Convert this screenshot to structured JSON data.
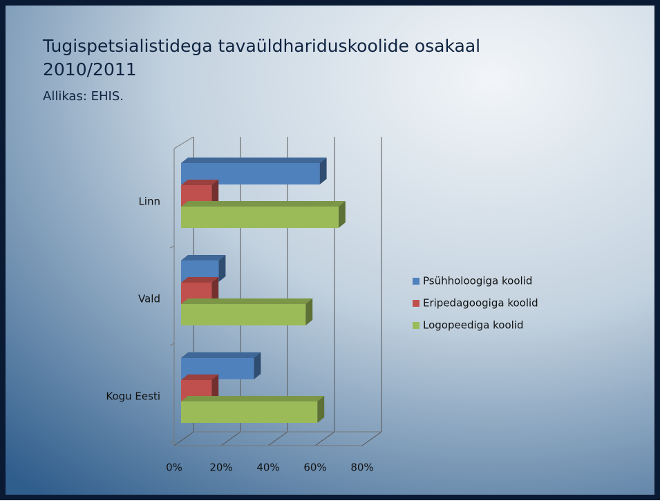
{
  "chart_data": {
    "type": "bar3d_horizontal",
    "title": "Tugispetsialistidega tavaüldhariduskoolide osakaal 2010/2011",
    "subtitle": "Allikas: EHIS.",
    "categories": [
      "Linn",
      "Vald",
      "Kogu Eesti"
    ],
    "series": [
      {
        "name": "Psühholoogiga koolid",
        "color": "#4f81bd",
        "values": [
          59,
          16,
          31
        ]
      },
      {
        "name": "Eripedagoogiga koolid",
        "color": "#c0504d",
        "values": [
          13,
          13,
          13
        ]
      },
      {
        "name": "Logopeediga koolid",
        "color": "#9bbb59",
        "values": [
          67,
          53,
          58
        ]
      }
    ],
    "xlim": [
      0,
      80
    ],
    "xticks": [
      {
        "value": 0,
        "label": "0%"
      },
      {
        "value": 20,
        "label": "20%"
      },
      {
        "value": 40,
        "label": "40%"
      },
      {
        "value": 60,
        "label": "60%"
      },
      {
        "value": 80,
        "label": "80%"
      }
    ],
    "grid": true,
    "legend": "right"
  }
}
